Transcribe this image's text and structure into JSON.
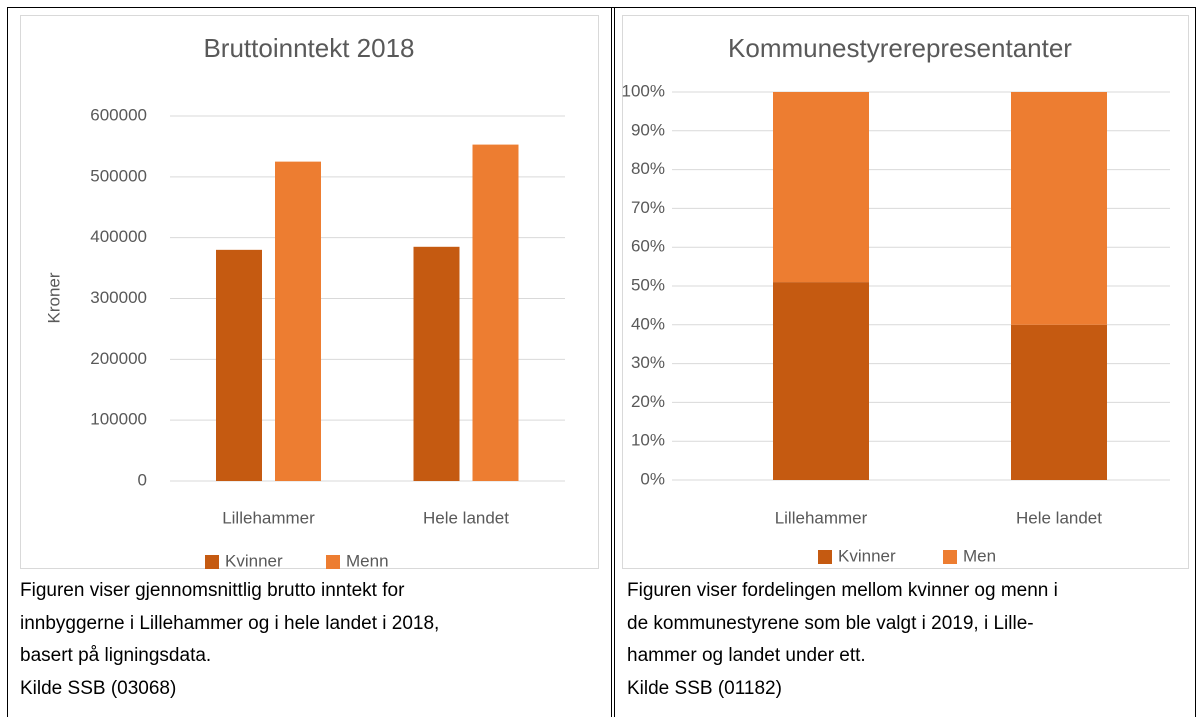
{
  "chart_data": [
    {
      "type": "bar",
      "title": "Bruttoinntekt 2018",
      "y_label": "Kroner",
      "categories": [
        "Lillehammer",
        "Hele landet"
      ],
      "series": [
        {
          "name": "Kvinner",
          "color": "#c55a11",
          "values": [
            380000,
            385000
          ]
        },
        {
          "name": "Menn",
          "color": "#ed7d31",
          "values": [
            525000,
            553000
          ]
        }
      ],
      "ylim": [
        0,
        600000
      ],
      "yticks": [
        0,
        100000,
        200000,
        300000,
        400000,
        500000,
        600000
      ],
      "grid": true,
      "legend": "bottom"
    },
    {
      "type": "stacked_bar",
      "title": "Kommunestyrerepresentanter",
      "categories": [
        "Lillehammer",
        "Hele landet"
      ],
      "series": [
        {
          "name": "Kvinner",
          "color": "#c55a11",
          "values": [
            51,
            40
          ]
        },
        {
          "name": "Men",
          "color": "#ed7d31",
          "values": [
            49,
            60
          ]
        }
      ],
      "ylim": [
        0,
        100
      ],
      "yticks": [
        {
          "value": 0,
          "label": "0%"
        },
        {
          "value": 10,
          "label": "10%"
        },
        {
          "value": 20,
          "label": "20%"
        },
        {
          "value": 30,
          "label": "30%"
        },
        {
          "value": 40,
          "label": "40%"
        },
        {
          "value": 50,
          "label": "50%"
        },
        {
          "value": 60,
          "label": "60%"
        },
        {
          "value": 70,
          "label": "70%"
        },
        {
          "value": 80,
          "label": "80%"
        },
        {
          "value": 90,
          "label": "90%"
        },
        {
          "value": 100,
          "label": "100%"
        }
      ],
      "grid": true,
      "legend": "bottom"
    }
  ],
  "captions": [
    {
      "lines": [
        "Figuren viser gjennomsnittlig brutto inntekt for",
        "innbyggerne i Lillehammer og i hele landet i 2018,",
        "basert på ligningsdata."
      ],
      "source": "Kilde SSB (03068)"
    },
    {
      "lines": [
        "Figuren viser fordelingen mellom kvinner og menn i",
        "de kommunestyrene som ble valgt i 2019, i Lille-",
        "hammer og landet under ett."
      ],
      "source": "Kilde SSB (01182)"
    }
  ]
}
